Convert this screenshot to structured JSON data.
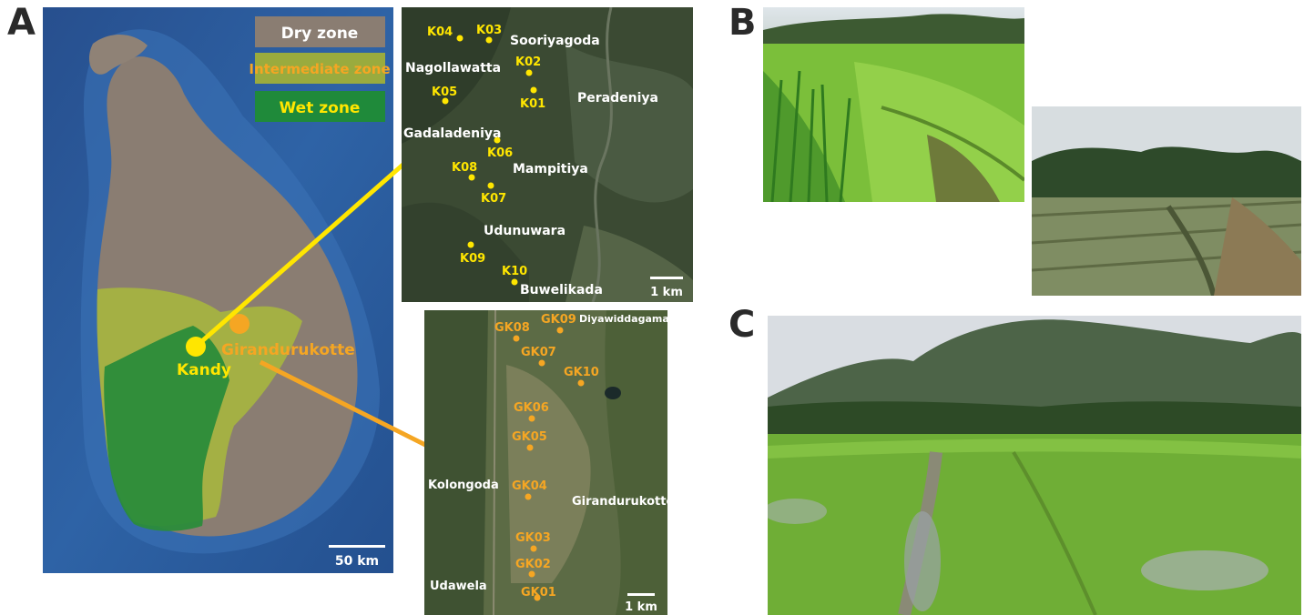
{
  "panels": {
    "a": "A",
    "b": "B",
    "c": "C"
  },
  "legend": {
    "dry": {
      "label": "Dry zone",
      "color": "#8a7d72"
    },
    "intermediate": {
      "label": "Intermediate zone",
      "color": "#9aab3e"
    },
    "wet": {
      "label": "Wet zone",
      "color": "#1f8a3a"
    }
  },
  "island": {
    "cities": [
      {
        "name": "Kandy",
        "color": "#ffe600"
      },
      {
        "name": "Girandurukotte",
        "color": "#f5a623"
      }
    ],
    "scale_label": "50 km"
  },
  "kandy_map": {
    "marker_color": "#ffe600",
    "sites": [
      "K04",
      "K03",
      "K02",
      "K01",
      "K05",
      "K06",
      "K08",
      "K07",
      "K09",
      "K10"
    ],
    "places": [
      "Sooriyagoda",
      "Nagollawatta",
      "Peradeniya",
      "Gadaladeniya",
      "Mampitiya",
      "Udunuwara",
      "Buwelikada"
    ],
    "scale_label": "1 km"
  },
  "girandurukotte_map": {
    "marker_color": "#f5a623",
    "sites": [
      "GK08",
      "GK09",
      "GK07",
      "GK10",
      "GK06",
      "GK05",
      "GK04",
      "GK03",
      "GK02",
      "GK01"
    ],
    "places": [
      "Diyawiddagama",
      "Kolongoda",
      "Girandurukotte",
      "Udawela"
    ],
    "scale_label": "1 km"
  }
}
